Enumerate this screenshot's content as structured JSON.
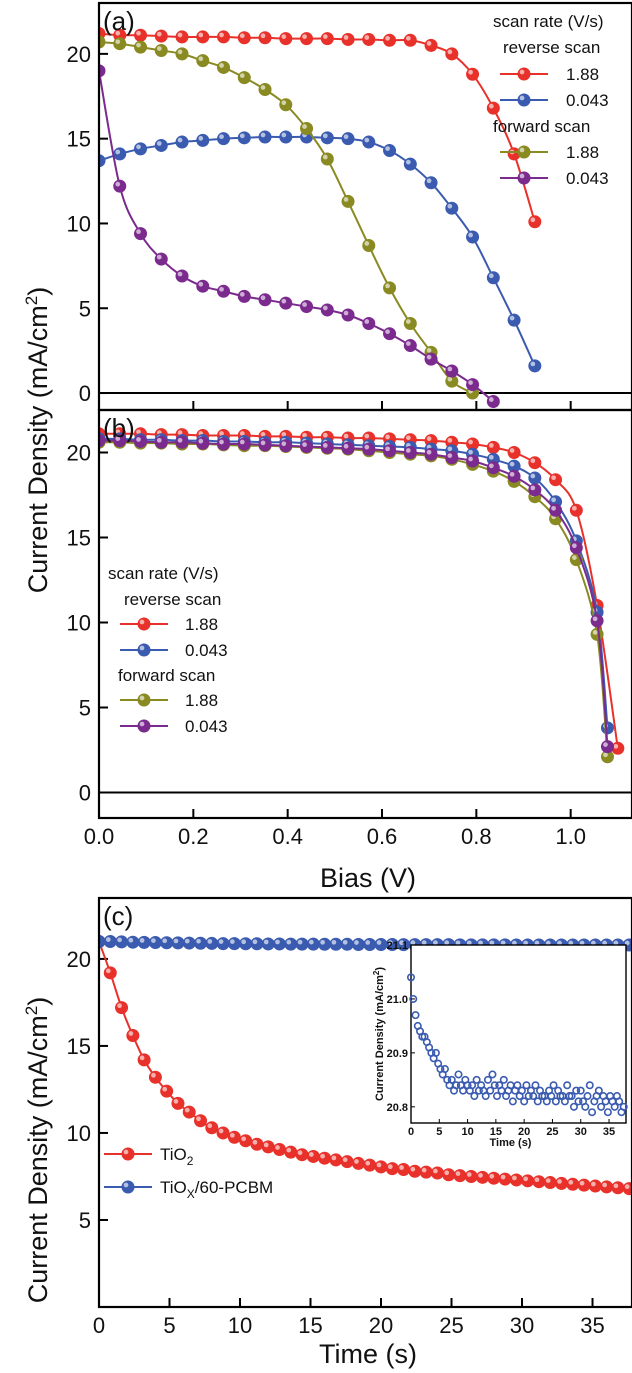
{
  "figure": {
    "ylabel_top": "Current Density (mA/cm²)",
    "xlabel_top": "Bias (V)",
    "ylabel_bottom": "Current Density (mA/cm²)",
    "xlabel_bottom": "Time (s)"
  },
  "chart_data": [
    {
      "id": "a",
      "panel_label": "(a)",
      "type": "line",
      "xlim": [
        0,
        1.13
      ],
      "ylim": [
        -1,
        23
      ],
      "xticks": [
        0.0,
        0.2,
        0.4,
        0.6,
        0.8,
        1.0
      ],
      "yticks": [
        0,
        5,
        10,
        15,
        20
      ],
      "legend": {
        "position": "top-right",
        "title": "scan rate (V/s)",
        "groups": [
          {
            "label": "reverse scan",
            "entries": [
              0,
              1
            ]
          },
          {
            "label": "forward scan",
            "entries": [
              2,
              3
            ]
          }
        ]
      },
      "series": [
        {
          "name": "1.88",
          "color": "#e8312a",
          "x": [
            0,
            0.044,
            0.088,
            0.132,
            0.176,
            0.22,
            0.264,
            0.308,
            0.352,
            0.396,
            0.44,
            0.484,
            0.528,
            0.572,
            0.616,
            0.66,
            0.704,
            0.748,
            0.792,
            0.836,
            0.88,
            0.924
          ],
          "y": [
            21.2,
            21.1,
            21.1,
            21.05,
            21.0,
            21.0,
            21.0,
            20.95,
            20.95,
            20.9,
            20.9,
            20.9,
            20.85,
            20.85,
            20.8,
            20.8,
            20.5,
            20.0,
            18.8,
            16.8,
            14.1,
            10.1
          ]
        },
        {
          "name": "0.043",
          "color": "#3a5bb0",
          "x": [
            0,
            0.044,
            0.088,
            0.132,
            0.176,
            0.22,
            0.264,
            0.308,
            0.352,
            0.396,
            0.44,
            0.484,
            0.528,
            0.572,
            0.616,
            0.66,
            0.704,
            0.748,
            0.792,
            0.836,
            0.88,
            0.924
          ],
          "y": [
            13.7,
            14.1,
            14.4,
            14.6,
            14.8,
            14.9,
            15.0,
            15.05,
            15.1,
            15.1,
            15.1,
            15.05,
            15.0,
            14.8,
            14.3,
            13.5,
            12.4,
            10.9,
            9.2,
            6.8,
            4.3,
            1.6
          ]
        },
        {
          "name": "1.88",
          "color": "#8a8a22",
          "x": [
            0,
            0.044,
            0.088,
            0.132,
            0.176,
            0.22,
            0.264,
            0.308,
            0.352,
            0.396,
            0.44,
            0.484,
            0.528,
            0.572,
            0.616,
            0.66,
            0.704,
            0.748,
            0.792
          ],
          "y": [
            20.7,
            20.6,
            20.4,
            20.2,
            20.0,
            19.6,
            19.2,
            18.6,
            17.9,
            17.0,
            15.6,
            13.8,
            11.3,
            8.7,
            6.2,
            4.1,
            2.4,
            0.7,
            0.0
          ]
        },
        {
          "name": "0.043",
          "color": "#7b2a8e",
          "x": [
            0,
            0.044,
            0.088,
            0.132,
            0.176,
            0.22,
            0.264,
            0.308,
            0.352,
            0.396,
            0.44,
            0.484,
            0.528,
            0.572,
            0.616,
            0.66,
            0.704,
            0.748,
            0.792,
            0.836
          ],
          "y": [
            19.0,
            12.2,
            9.4,
            7.9,
            6.9,
            6.3,
            6.0,
            5.7,
            5.5,
            5.3,
            5.1,
            4.9,
            4.6,
            4.1,
            3.5,
            2.8,
            2.0,
            1.3,
            0.5,
            -0.5
          ]
        }
      ]
    },
    {
      "id": "b",
      "panel_label": "(b)",
      "type": "line",
      "xlim": [
        0,
        1.13
      ],
      "ylim": [
        -1.5,
        22.5
      ],
      "xticks": [
        0.0,
        0.2,
        0.4,
        0.6,
        0.8,
        1.0
      ],
      "yticks": [
        0,
        5,
        10,
        15,
        20
      ],
      "legend": {
        "position": "middle-left",
        "title": "scan rate (V/s)",
        "groups": [
          {
            "label": "reverse scan",
            "entries": [
              0,
              1
            ]
          },
          {
            "label": "forward scan",
            "entries": [
              2,
              3
            ]
          }
        ]
      },
      "series": [
        {
          "name": "1.88",
          "color": "#e8312a",
          "x": [
            0,
            0.044,
            0.088,
            0.132,
            0.176,
            0.22,
            0.264,
            0.308,
            0.352,
            0.396,
            0.44,
            0.484,
            0.528,
            0.572,
            0.616,
            0.66,
            0.704,
            0.748,
            0.792,
            0.836,
            0.88,
            0.924,
            0.968,
            1.012,
            1.056,
            1.1
          ],
          "y": [
            21.1,
            21.1,
            21.1,
            21.05,
            21.05,
            21.0,
            21.0,
            21.0,
            20.95,
            20.95,
            20.9,
            20.9,
            20.85,
            20.85,
            20.8,
            20.75,
            20.7,
            20.6,
            20.5,
            20.3,
            20.0,
            19.4,
            18.4,
            16.6,
            11.0,
            2.6
          ]
        },
        {
          "name": "0.043",
          "color": "#3a5bb0",
          "x": [
            0,
            0.044,
            0.088,
            0.132,
            0.176,
            0.22,
            0.264,
            0.308,
            0.352,
            0.396,
            0.44,
            0.484,
            0.528,
            0.572,
            0.616,
            0.66,
            0.704,
            0.748,
            0.792,
            0.836,
            0.88,
            0.924,
            0.968,
            1.012,
            1.056,
            1.078
          ],
          "y": [
            20.8,
            20.8,
            20.75,
            20.75,
            20.7,
            20.7,
            20.65,
            20.65,
            20.6,
            20.6,
            20.55,
            20.5,
            20.45,
            20.4,
            20.35,
            20.3,
            20.2,
            20.1,
            19.9,
            19.6,
            19.2,
            18.5,
            17.1,
            14.8,
            10.6,
            3.8
          ]
        },
        {
          "name": "1.88",
          "color": "#8a8a22",
          "x": [
            0,
            0.044,
            0.088,
            0.132,
            0.176,
            0.22,
            0.264,
            0.308,
            0.352,
            0.396,
            0.44,
            0.484,
            0.528,
            0.572,
            0.616,
            0.66,
            0.704,
            0.748,
            0.792,
            0.836,
            0.88,
            0.924,
            0.968,
            1.012,
            1.056,
            1.078
          ],
          "y": [
            20.6,
            20.6,
            20.55,
            20.55,
            20.5,
            20.5,
            20.45,
            20.4,
            20.4,
            20.35,
            20.3,
            20.25,
            20.2,
            20.1,
            20.0,
            19.9,
            19.8,
            19.6,
            19.3,
            18.9,
            18.3,
            17.4,
            16.1,
            13.7,
            9.3,
            2.1
          ]
        },
        {
          "name": "0.043",
          "color": "#7b2a8e",
          "x": [
            0,
            0.044,
            0.088,
            0.132,
            0.176,
            0.22,
            0.264,
            0.308,
            0.352,
            0.396,
            0.44,
            0.484,
            0.528,
            0.572,
            0.616,
            0.66,
            0.704,
            0.748,
            0.792,
            0.836,
            0.88,
            0.924,
            0.968,
            1.012,
            1.056,
            1.078
          ],
          "y": [
            20.7,
            20.7,
            20.65,
            20.6,
            20.6,
            20.55,
            20.5,
            20.5,
            20.45,
            20.4,
            20.35,
            20.3,
            20.25,
            20.2,
            20.1,
            20.0,
            19.9,
            19.7,
            19.5,
            19.1,
            18.6,
            17.8,
            16.6,
            14.4,
            10.1,
            2.7
          ]
        }
      ]
    },
    {
      "id": "c",
      "panel_label": "(c)",
      "type": "line",
      "xlim": [
        0,
        37.8
      ],
      "ylim": [
        0,
        23.5
      ],
      "xticks": [
        0,
        5,
        10,
        15,
        20,
        25,
        30,
        35
      ],
      "yticks": [
        5,
        10,
        15,
        20
      ],
      "legend": {
        "position": "lower-left"
      },
      "series": [
        {
          "name": "TiO₂",
          "name_main": "TiO",
          "name_sub": "2",
          "name_after": "",
          "color": "#e8312a",
          "x": [
            0,
            0.8,
            1.6,
            2.4,
            3.2,
            4.0,
            4.8,
            5.6,
            6.4,
            7.2,
            8.0,
            8.8,
            9.6,
            10.4,
            11.2,
            12.0,
            12.8,
            13.6,
            14.4,
            15.2,
            16.0,
            16.8,
            17.6,
            18.4,
            19.2,
            20.0,
            20.8,
            21.6,
            22.4,
            23.2,
            24.0,
            24.8,
            25.6,
            26.4,
            27.2,
            28.0,
            28.8,
            29.6,
            30.4,
            31.2,
            32.0,
            32.8,
            33.6,
            34.4,
            35.2,
            36.0,
            36.8,
            37.6
          ],
          "y": [
            21.0,
            19.2,
            17.2,
            15.6,
            14.2,
            13.2,
            12.4,
            11.7,
            11.2,
            10.7,
            10.3,
            10.0,
            9.75,
            9.55,
            9.35,
            9.2,
            9.05,
            8.9,
            8.75,
            8.65,
            8.55,
            8.45,
            8.35,
            8.25,
            8.15,
            8.05,
            7.95,
            7.9,
            7.8,
            7.75,
            7.7,
            7.6,
            7.55,
            7.5,
            7.45,
            7.4,
            7.35,
            7.3,
            7.25,
            7.2,
            7.15,
            7.1,
            7.05,
            7.0,
            6.95,
            6.9,
            6.85,
            6.8
          ]
        },
        {
          "name": "TiOX/60-PCBM",
          "name_main": "TiO",
          "name_sub": "X",
          "name_after": "/60-PCBM",
          "color": "#3a5bb0",
          "x": [
            0,
            0.8,
            1.6,
            2.4,
            3.2,
            4.0,
            4.8,
            5.6,
            6.4,
            7.2,
            8.0,
            8.8,
            9.6,
            10.4,
            11.2,
            12.0,
            12.8,
            13.6,
            14.4,
            15.2,
            16.0,
            16.8,
            17.6,
            18.4,
            19.2,
            20.0,
            20.8,
            21.6,
            22.4,
            23.2,
            24.0,
            24.8,
            25.6,
            26.4,
            27.2,
            28.0,
            28.8,
            29.6,
            30.4,
            31.2,
            32.0,
            32.8,
            33.6,
            34.4,
            35.2,
            36.0,
            36.8,
            37.6
          ],
          "y": [
            21.0,
            21.0,
            20.98,
            20.96,
            20.95,
            20.94,
            20.93,
            20.92,
            20.91,
            20.9,
            20.89,
            20.88,
            20.88,
            20.87,
            20.87,
            20.86,
            20.86,
            20.85,
            20.85,
            20.85,
            20.84,
            20.84,
            20.84,
            20.83,
            20.83,
            20.83,
            20.83,
            20.82,
            20.82,
            20.82,
            20.82,
            20.82,
            20.81,
            20.81,
            20.81,
            20.81,
            20.81,
            20.8,
            20.8,
            20.8,
            20.8,
            20.8,
            20.8,
            20.8,
            20.8,
            20.8,
            20.8,
            20.8
          ]
        }
      ],
      "inset": {
        "type": "scatter",
        "xlabel": "Time (s)",
        "ylabel": "Current Density (mA/cm²)",
        "xlim": [
          0,
          38
        ],
        "ylim": [
          20.77,
          21.1
        ],
        "xticks": [
          0,
          5,
          10,
          15,
          20,
          25,
          30,
          35
        ],
        "yticks": [
          20.8,
          20.9,
          21.0,
          21.1
        ],
        "color": "#3a5bb0",
        "x": [
          0,
          0.4,
          0.8,
          1.2,
          1.6,
          2.0,
          2.4,
          2.8,
          3.2,
          3.6,
          4.0,
          4.4,
          4.8,
          5.2,
          5.6,
          6.0,
          6.4,
          6.8,
          7.2,
          7.6,
          8.0,
          8.4,
          8.8,
          9.2,
          9.6,
          10.0,
          10.4,
          10.8,
          11.2,
          11.6,
          12.0,
          12.4,
          12.8,
          13.2,
          13.6,
          14.0,
          14.4,
          14.8,
          15.2,
          15.6,
          16.0,
          16.4,
          16.8,
          17.2,
          17.6,
          18.0,
          18.4,
          18.8,
          19.2,
          19.6,
          20.0,
          20.4,
          20.8,
          21.2,
          21.6,
          22.0,
          22.4,
          22.8,
          23.2,
          23.6,
          24.0,
          24.4,
          24.8,
          25.2,
          25.6,
          26.0,
          26.4,
          26.8,
          27.2,
          27.6,
          28.0,
          28.4,
          28.8,
          29.2,
          29.6,
          30.0,
          30.4,
          30.8,
          31.2,
          31.6,
          32.0,
          32.4,
          32.8,
          33.2,
          33.6,
          34.0,
          34.4,
          34.8,
          35.2,
          35.6,
          36.0,
          36.4,
          36.8,
          37.2,
          37.6
        ],
        "y": [
          21.04,
          21.0,
          20.97,
          20.95,
          20.94,
          20.93,
          20.93,
          20.92,
          20.91,
          20.9,
          20.89,
          20.9,
          20.88,
          20.87,
          20.86,
          20.87,
          20.85,
          20.84,
          20.85,
          20.83,
          20.84,
          20.86,
          20.84,
          20.83,
          20.85,
          20.84,
          20.83,
          20.84,
          20.82,
          20.85,
          20.83,
          20.84,
          20.83,
          20.82,
          20.85,
          20.83,
          20.86,
          20.84,
          20.82,
          20.84,
          20.83,
          20.85,
          20.82,
          20.83,
          20.84,
          20.81,
          20.83,
          20.84,
          20.82,
          20.83,
          20.81,
          20.84,
          20.82,
          20.83,
          20.82,
          20.84,
          20.81,
          20.83,
          20.82,
          20.82,
          20.81,
          20.83,
          20.82,
          20.84,
          20.81,
          20.83,
          20.82,
          20.82,
          20.81,
          20.84,
          20.82,
          20.82,
          20.8,
          20.83,
          20.81,
          20.83,
          20.81,
          20.8,
          20.82,
          20.84,
          20.79,
          20.81,
          20.82,
          20.83,
          20.8,
          20.82,
          20.81,
          20.79,
          20.82,
          20.81,
          20.8,
          20.82,
          20.81,
          20.79,
          20.8
        ]
      }
    }
  ]
}
